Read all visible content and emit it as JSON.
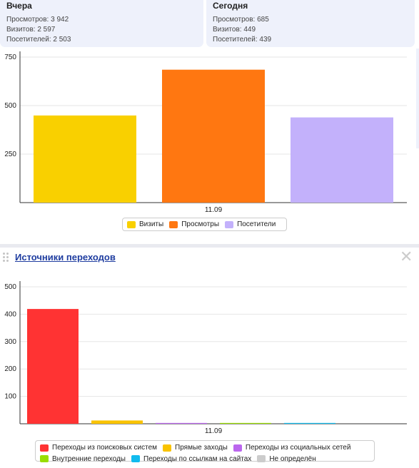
{
  "yesterday": {
    "title": "Вчера",
    "views": "Просмотров: 3 942",
    "visits": "Визитов: 2 597",
    "visitors": "Посетителей: 2 503"
  },
  "today": {
    "title": "Сегодня",
    "views": "Просмотров: 685",
    "visits": "Визитов: 449",
    "visitors": "Посетителей: 439"
  },
  "section2": {
    "title": "Источники переходов",
    "close_icon": "close-icon",
    "drag_icon": "drag-handle-icon"
  },
  "chart_data": [
    {
      "type": "bar",
      "categories": [
        "11.09"
      ],
      "series": [
        {
          "name": "Визиты",
          "values": [
            449
          ],
          "color": "#f9d000"
        },
        {
          "name": "Просмотры",
          "values": [
            685
          ],
          "color": "#ff7711"
        },
        {
          "name": "Посетители",
          "values": [
            439
          ],
          "color": "#c3b1fb"
        }
      ],
      "ylim": [
        0,
        750
      ],
      "yticks": [
        250,
        500,
        750
      ],
      "grid": true,
      "legend": "bottom"
    },
    {
      "type": "bar",
      "categories": [
        "11.09"
      ],
      "series": [
        {
          "name": "Переходы из поисковых систем",
          "values": [
            419
          ],
          "color": "#ff3333"
        },
        {
          "name": "Прямые заходы",
          "values": [
            12
          ],
          "color": "#f9c300"
        },
        {
          "name": "Переходы из социальных сетей",
          "values": [
            3
          ],
          "color": "#bb66ee"
        },
        {
          "name": "Внутренние переходы",
          "values": [
            3
          ],
          "color": "#99dd00"
        },
        {
          "name": "Переходы по ссылкам на сайтах",
          "values": [
            3
          ],
          "color": "#11bbee"
        },
        {
          "name": "Не определён",
          "values": [
            0
          ],
          "color": "#cccccc"
        }
      ],
      "ylim": [
        0,
        500
      ],
      "yticks": [
        100,
        200,
        300,
        400,
        500
      ],
      "grid": true,
      "legend": "bottom"
    }
  ]
}
